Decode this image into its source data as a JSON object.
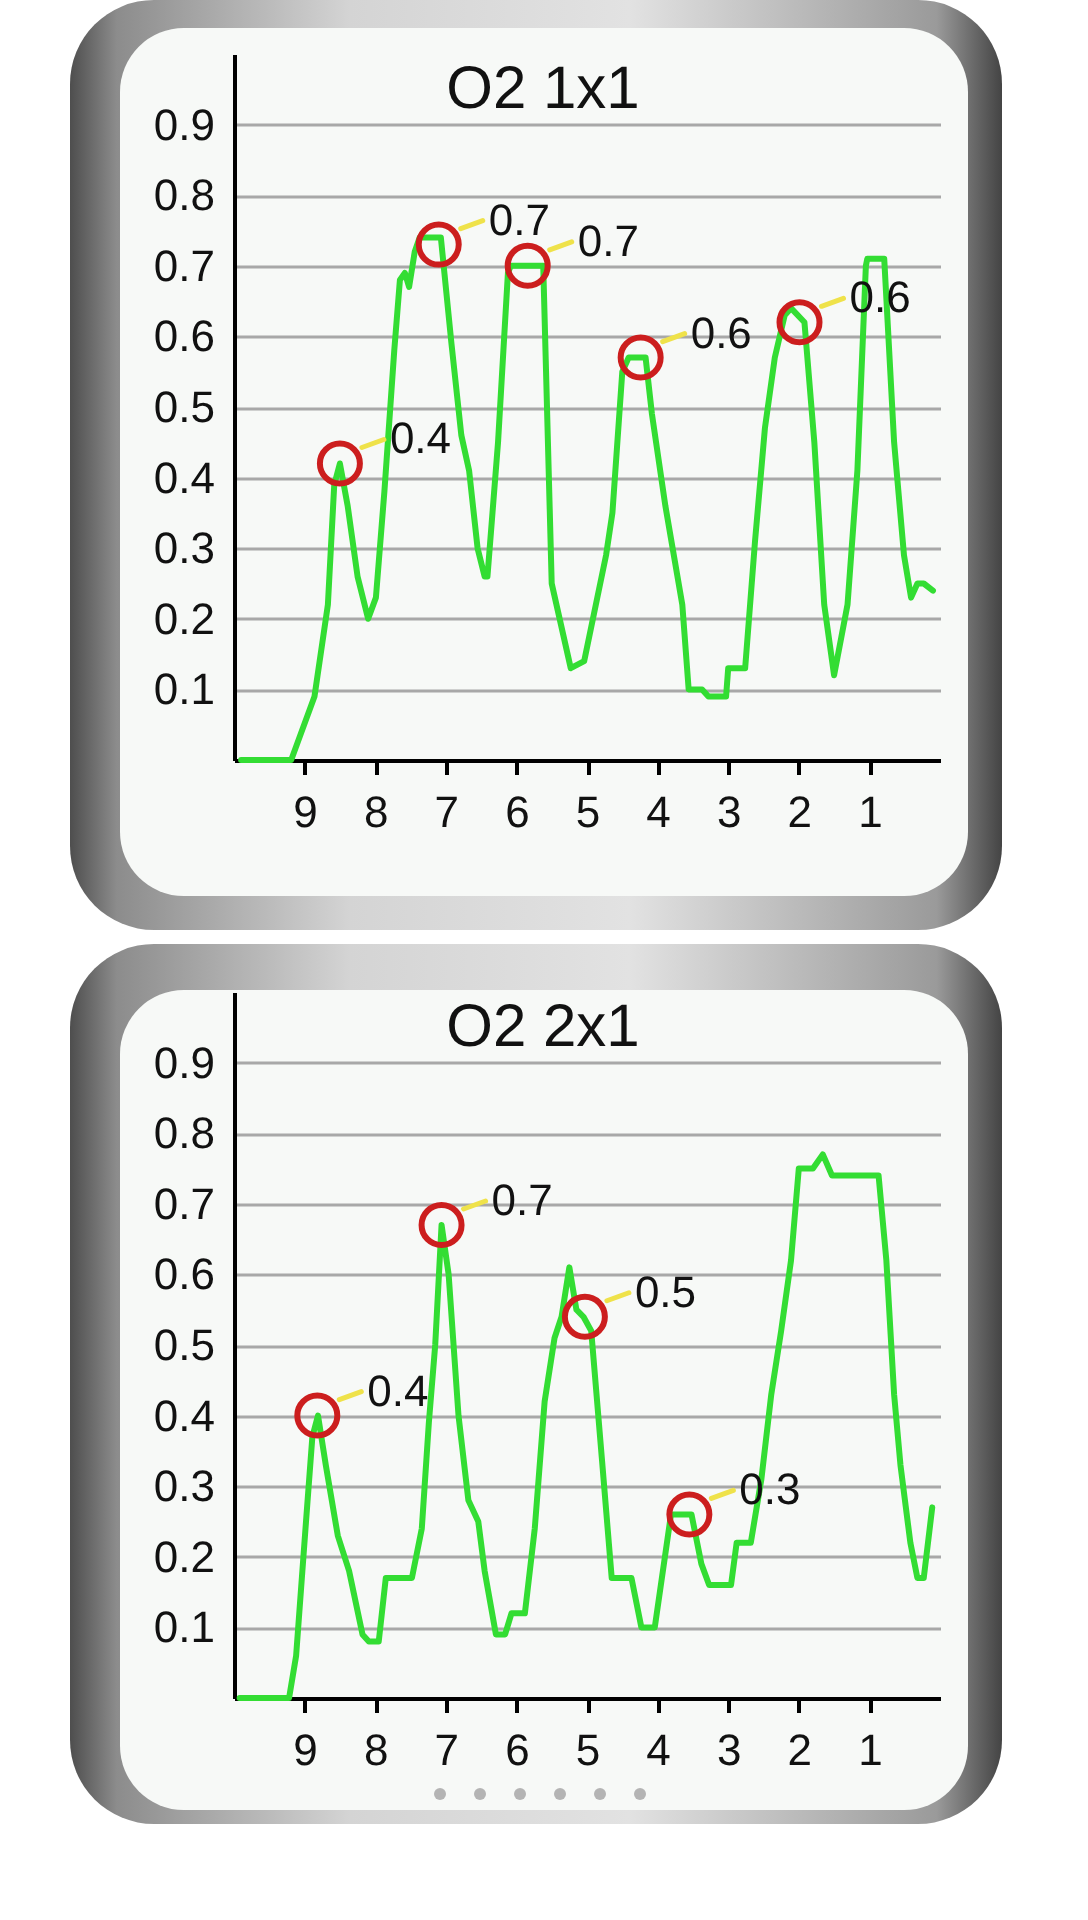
{
  "chart_data": [
    {
      "type": "line",
      "title": "O2 1x1",
      "color": "#33dd33",
      "xlim": [
        10,
        0
      ],
      "xticks": [
        9,
        8,
        7,
        6,
        5,
        4,
        3,
        2,
        1
      ],
      "ylim": [
        0,
        1
      ],
      "yticks": [
        0.1,
        0.2,
        0.3,
        0.4,
        0.5,
        0.6,
        0.7,
        0.8,
        0.9
      ],
      "grid": "y",
      "x": [
        9.9,
        9.19,
        8.86,
        8.67,
        8.58,
        8.5,
        8.39,
        8.25,
        8.1,
        7.99,
        7.87,
        7.73,
        7.65,
        7.58,
        7.52,
        7.44,
        7.37,
        7.07,
        6.92,
        6.78,
        6.67,
        6.55,
        6.45,
        6.41,
        6.26,
        6.12,
        6.08,
        5.62,
        5.5,
        5.23,
        5.04,
        4.73,
        4.64,
        4.5,
        4.41,
        4.17,
        4.08,
        3.89,
        3.65,
        3.56,
        3.37,
        3.28,
        3.03,
        3.0,
        2.76,
        2.62,
        2.48,
        2.34,
        2.2,
        2.11,
        1.92,
        1.78,
        1.64,
        1.5,
        1.31,
        1.17,
        1.05,
        1.03,
        0.79,
        0.65,
        0.51,
        0.41,
        0.32,
        0.23,
        0.1
      ],
      "values": [
        0,
        0,
        0.09,
        0.22,
        0.39,
        0.42,
        0.36,
        0.26,
        0.2,
        0.23,
        0.38,
        0.58,
        0.68,
        0.69,
        0.67,
        0.72,
        0.74,
        0.74,
        0.59,
        0.46,
        0.41,
        0.3,
        0.26,
        0.26,
        0.45,
        0.69,
        0.7,
        0.7,
        0.25,
        0.13,
        0.14,
        0.29,
        0.35,
        0.55,
        0.57,
        0.57,
        0.49,
        0.36,
        0.22,
        0.1,
        0.1,
        0.09,
        0.09,
        0.13,
        0.13,
        0.31,
        0.47,
        0.57,
        0.63,
        0.64,
        0.62,
        0.45,
        0.22,
        0.12,
        0.22,
        0.41,
        0.7,
        0.71,
        0.71,
        0.45,
        0.29,
        0.23,
        0.25,
        0.25,
        0.24
      ],
      "annotations": [
        {
          "text": "0.4",
          "x": 8.5,
          "y": 0.42
        },
        {
          "text": "0.7",
          "x": 7.1,
          "y": 0.73
        },
        {
          "text": "0.7",
          "x": 5.84,
          "y": 0.7
        },
        {
          "text": "0.6",
          "x": 4.24,
          "y": 0.57
        },
        {
          "text": "0.6",
          "x": 1.99,
          "y": 0.62
        }
      ]
    },
    {
      "type": "line",
      "title": "O2 2x1",
      "color": "#33dd33",
      "xlim": [
        10,
        0
      ],
      "xticks": [
        9,
        8,
        7,
        6,
        5,
        4,
        3,
        2,
        1
      ],
      "ylim": [
        0,
        1
      ],
      "yticks": [
        0.1,
        0.2,
        0.3,
        0.4,
        0.5,
        0.6,
        0.7,
        0.8,
        0.9
      ],
      "grid": "y",
      "x": [
        9.92,
        9.22,
        9.12,
        8.98,
        8.89,
        8.81,
        8.7,
        8.53,
        8.37,
        8.18,
        8.09,
        7.95,
        7.85,
        7.48,
        7.34,
        7.24,
        7.15,
        7.06,
        6.96,
        6.82,
        6.68,
        6.54,
        6.45,
        6.29,
        6.16,
        6.07,
        5.88,
        5.74,
        5.6,
        5.46,
        5.36,
        5.25,
        5.15,
        5.05,
        4.94,
        4.79,
        4.65,
        4.56,
        4.37,
        4.23,
        4.04,
        3.81,
        3.71,
        3.52,
        3.38,
        3.27,
        2.96,
        2.88,
        2.68,
        2.53,
        2.39,
        2.25,
        2.11,
        2.0,
        1.8,
        1.66,
        1.53,
        0.87,
        0.76,
        0.65,
        0.56,
        0.42,
        0.32,
        0.23,
        0.11
      ],
      "values": [
        0,
        0,
        0.06,
        0.25,
        0.37,
        0.4,
        0.33,
        0.23,
        0.18,
        0.09,
        0.08,
        0.08,
        0.17,
        0.17,
        0.24,
        0.39,
        0.5,
        0.67,
        0.6,
        0.4,
        0.28,
        0.25,
        0.18,
        0.09,
        0.09,
        0.12,
        0.12,
        0.24,
        0.42,
        0.51,
        0.54,
        0.61,
        0.55,
        0.54,
        0.52,
        0.34,
        0.17,
        0.17,
        0.17,
        0.1,
        0.1,
        0.26,
        0.26,
        0.26,
        0.19,
        0.16,
        0.16,
        0.22,
        0.22,
        0.31,
        0.43,
        0.52,
        0.62,
        0.75,
        0.75,
        0.77,
        0.74,
        0.74,
        0.62,
        0.43,
        0.33,
        0.22,
        0.17,
        0.17,
        0.27
      ],
      "annotations": [
        {
          "text": "0.4",
          "x": 8.82,
          "y": 0.4
        },
        {
          "text": "0.7",
          "x": 7.06,
          "y": 0.67
        },
        {
          "text": "0.5",
          "x": 5.03,
          "y": 0.54
        },
        {
          "text": "0.3",
          "x": 3.55,
          "y": 0.26
        }
      ]
    }
  ]
}
